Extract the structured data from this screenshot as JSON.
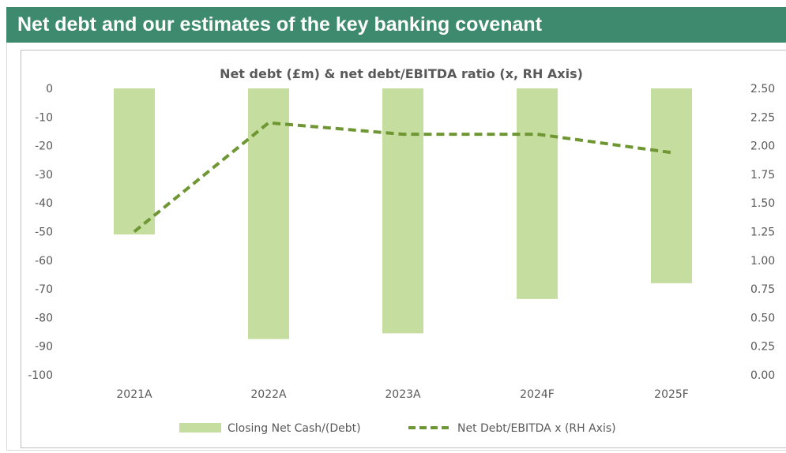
{
  "header": {
    "title": "Net debt and our estimates of the key banking covenant"
  },
  "chart_data": {
    "type": "bar",
    "title": "Net debt (£m) & net debt/EBITDA ratio (x, RH Axis)",
    "categories": [
      "2021A",
      "2022A",
      "2023A",
      "2024F",
      "2025F"
    ],
    "series": [
      {
        "name": "Closing Net Cash/(Debt)",
        "type": "bar",
        "axis": "left",
        "color": "#c5dd9e",
        "values": [
          -51,
          -87.5,
          -85.5,
          -73.5,
          -68
        ]
      },
      {
        "name": "Net Debt/EBITDA x (RH Axis)",
        "type": "line",
        "style": "dashed",
        "axis": "right",
        "color": "#6e9632",
        "values": [
          1.25,
          2.2,
          2.1,
          2.1,
          1.94
        ]
      }
    ],
    "y_left": {
      "lim": [
        -100,
        0
      ],
      "ticks": [
        0,
        -10,
        -20,
        -30,
        -40,
        -50,
        -60,
        -70,
        -80,
        -90,
        -100
      ],
      "tick_labels": [
        "0",
        "-10",
        "-20",
        "-30",
        "-40",
        "-50",
        "-60",
        "-70",
        "-80",
        "-90",
        "-100"
      ]
    },
    "y_right": {
      "lim": [
        0,
        2.5
      ],
      "ticks": [
        2.5,
        2.25,
        2.0,
        1.75,
        1.5,
        1.25,
        1.0,
        0.75,
        0.5,
        0.25,
        0.0
      ],
      "tick_labels": [
        "2.50",
        "2.25",
        "2.00",
        "1.75",
        "1.50",
        "1.25",
        "1.00",
        "0.75",
        "0.50",
        "0.25",
        "0.00"
      ]
    },
    "grid": false,
    "legend": "bottom"
  }
}
